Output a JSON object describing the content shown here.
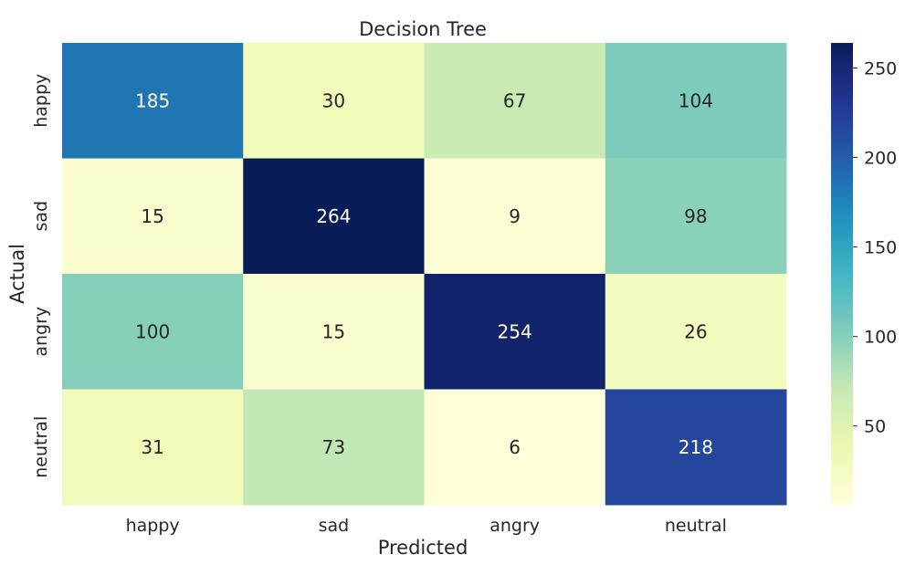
{
  "chart_data": {
    "type": "heatmap",
    "title": "Decision Tree",
    "xlabel": "Predicted",
    "ylabel": "Actual",
    "x_categories": [
      "happy",
      "sad",
      "angry",
      "neutral"
    ],
    "y_categories": [
      "happy",
      "sad",
      "angry",
      "neutral"
    ],
    "values": [
      [
        185,
        30,
        67,
        104
      ],
      [
        15,
        264,
        9,
        98
      ],
      [
        100,
        15,
        254,
        26
      ],
      [
        31,
        73,
        6,
        218
      ]
    ],
    "colormap": "YlGnBu",
    "colorbar": {
      "range": [
        6,
        264
      ],
      "ticks": [
        50,
        100,
        150,
        200,
        250
      ],
      "tick_labels": [
        "50",
        "100",
        "150",
        "200",
        "250"
      ]
    }
  }
}
